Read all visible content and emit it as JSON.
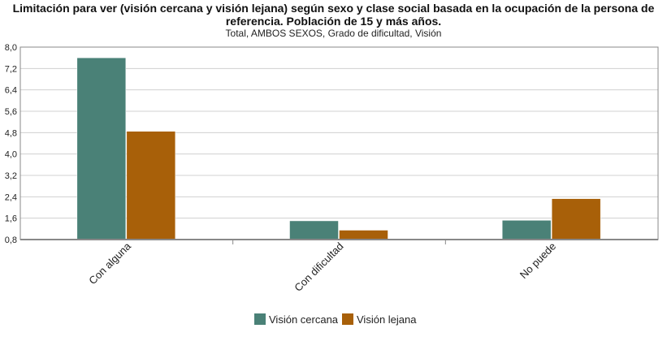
{
  "chart_data": {
    "type": "bar",
    "title": "Limitación para ver (visión cercana y visión lejana) según sexo y clase social basada en la ocupación de la persona de referencia. Población de 15 y más años.",
    "subtitle": "Total, AMBOS SEXOS, Grado de dificultad, Visión",
    "categories": [
      "Con alguna",
      "Con dificultad",
      "No puede"
    ],
    "series": [
      {
        "name": "Visión cercana",
        "color": "#4a8177",
        "values": [
          7.6,
          1.5,
          1.52
        ]
      },
      {
        "name": "Visión lejana",
        "color": "#a86009",
        "values": [
          4.85,
          1.15,
          2.33
        ]
      }
    ],
    "ylim": [
      0.8,
      8.0
    ],
    "yticks": [
      "0,8",
      "1,6",
      "2,4",
      "3,2",
      "4,0",
      "4,8",
      "5,6",
      "6,4",
      "7,2",
      "8,0"
    ],
    "grid": true,
    "legend": "bottom"
  }
}
